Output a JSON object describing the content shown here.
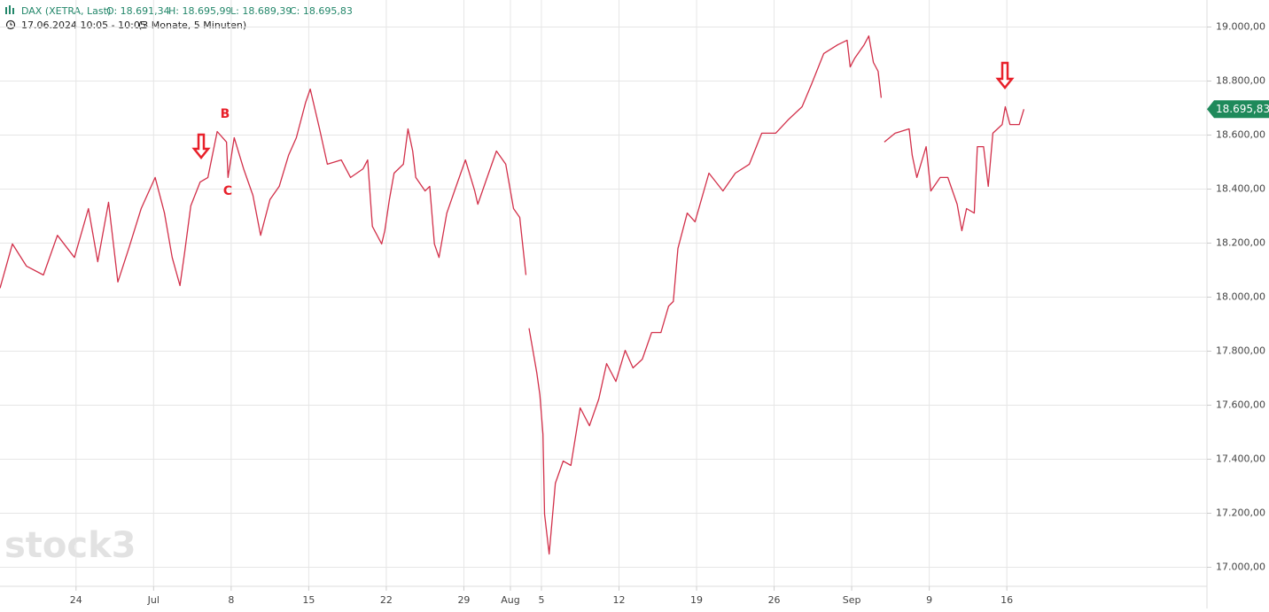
{
  "chart_data": {
    "type": "line",
    "instrument": "DAX (XETRA, Last)",
    "open": "O: 18.691,34",
    "high": "H: 18.695,99",
    "low": "L: 18.689,39",
    "close": "C: 18.695,83",
    "period": "17.06.2024 10:05 - 10:05",
    "range": "(3 Monate, 5 Minuten)",
    "watermark": "stock3",
    "annotations": [
      {
        "text": "B"
      },
      {
        "text": "C"
      }
    ],
    "last_price": {
      "value": 18695.83,
      "label": "18.695,83"
    },
    "xlim": [
      -4.9,
      72.9
    ],
    "ylim": [
      16900,
      19100
    ],
    "grid": true,
    "xticks": [
      {
        "value": 0,
        "label": "24"
      },
      {
        "value": 5,
        "label": "Jul"
      },
      {
        "value": 10,
        "label": "8"
      },
      {
        "value": 15,
        "label": "15"
      },
      {
        "value": 20,
        "label": "22"
      },
      {
        "value": 25,
        "label": "29"
      },
      {
        "value": 28,
        "label": "Aug"
      },
      {
        "value": 30,
        "label": "5"
      },
      {
        "value": 35,
        "label": "12"
      },
      {
        "value": 40,
        "label": "19"
      },
      {
        "value": 45,
        "label": "26"
      },
      {
        "value": 50,
        "label": "Sep"
      },
      {
        "value": 55,
        "label": "9"
      },
      {
        "value": 60,
        "label": "16"
      }
    ],
    "yticks": [
      {
        "value": 17000,
        "label": "17.000,00"
      },
      {
        "value": 17200,
        "label": "17.200,00"
      },
      {
        "value": 17400,
        "label": "17.400,00"
      },
      {
        "value": 17600,
        "label": "17.600,00"
      },
      {
        "value": 17800,
        "label": "17.800,00"
      },
      {
        "value": 18000,
        "label": "18.000,00"
      },
      {
        "value": 18200,
        "label": "18.200,00"
      },
      {
        "value": 18400,
        "label": "18.400,00"
      },
      {
        "value": 18600,
        "label": "18.600,00"
      },
      {
        "value": 18800,
        "label": "18.800,00"
      },
      {
        "value": 19000,
        "label": "19.000,00"
      }
    ],
    "x": [
      -4.9,
      -4.1,
      -3.2,
      -2.1,
      -1.2,
      -0.1,
      0.8,
      1.4,
      2.1,
      2.7,
      3.4,
      4.2,
      5.1,
      5.7,
      6.2,
      6.7,
      7.0,
      7.4,
      8.0,
      8.5,
      9.1,
      9.7,
      9.8,
      10.2,
      10.8,
      11.4,
      11.9,
      12.5,
      13.1,
      13.7,
      14.2,
      14.8,
      15.1,
      15.7,
      16.2,
      17.1,
      17.7,
      18.5,
      18.8,
      19.1,
      19.7,
      19.9,
      20.2,
      20.5,
      21.1,
      21.4,
      21.7,
      21.9,
      22.5,
      22.8,
      23.1,
      23.4,
      23.9,
      24.5,
      25.1,
      25.7,
      25.9,
      26.5,
      27.1,
      27.7,
      28.2,
      28.6,
      29.0,
      29.1,
      29.2,
      29.7,
      29.9,
      30.1,
      30.2,
      30.5,
      30.9,
      31.4,
      31.9,
      32.5,
      33.1,
      33.7,
      34.2,
      34.8,
      35.4,
      35.9,
      36.5,
      37.1,
      37.7,
      38.2,
      38.5,
      38.8,
      39.4,
      39.9,
      40.8,
      41.7,
      42.5,
      43.4,
      44.2,
      45.1,
      45.9,
      46.8,
      47.4,
      48.2,
      49.1,
      49.7,
      49.9,
      50.2,
      50.8,
      51.1,
      51.4,
      51.7,
      51.9,
      52.0,
      52.1,
      52.8,
      53.7,
      53.9,
      54.2,
      54.8,
      55.1,
      55.7,
      56.2,
      56.8,
      57.1,
      57.4,
      57.9,
      58.1,
      58.5,
      58.8,
      59.1,
      59.7,
      59.9,
      60.2,
      60.8,
      61.1
    ],
    "series": [
      {
        "name": "DAX",
        "color": "#d2304a",
        "values": [
          18033,
          18197,
          18115,
          18082,
          18229,
          18147,
          18328,
          18131,
          18351,
          18056,
          18180,
          18328,
          18443,
          18311,
          18147,
          18043,
          18164,
          18338,
          18426,
          18443,
          18613,
          18574,
          18443,
          18590,
          18475,
          18377,
          18229,
          18361,
          18410,
          18525,
          18590,
          18721,
          18770,
          18623,
          18492,
          18508,
          18443,
          18475,
          18508,
          18262,
          18197,
          18246,
          18361,
          18459,
          18492,
          18623,
          18541,
          18443,
          18393,
          18410,
          18197,
          18147,
          18311,
          18410,
          18508,
          18393,
          18344,
          18443,
          18541,
          18492,
          18328,
          18295,
          18082,
          null,
          17885,
          17721,
          17639,
          17492,
          17197,
          17049,
          17311,
          17393,
          17377,
          17590,
          17524,
          17623,
          17754,
          17688,
          17803,
          17738,
          17770,
          17869,
          17869,
          17967,
          17984,
          18180,
          18311,
          18279,
          18459,
          18393,
          18459,
          18492,
          18607,
          18607,
          18656,
          18705,
          18787,
          18902,
          18934,
          18951,
          18852,
          18885,
          18934,
          18967,
          18869,
          18836,
          18738,
          null,
          18574,
          18607,
          18623,
          18525,
          18443,
          18557,
          18393,
          18443,
          18443,
          18344,
          18246,
          18328,
          18311,
          18557,
          18557,
          18410,
          18607,
          18639,
          18705,
          18639,
          18639,
          18695.83
        ]
      }
    ]
  }
}
